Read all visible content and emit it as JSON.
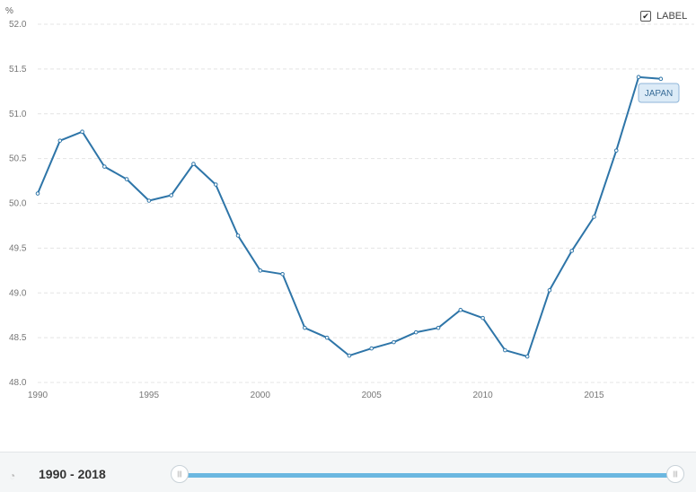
{
  "unit_label": "%",
  "label_toggle": {
    "label": "LABEL",
    "checked": true
  },
  "series_tag": "JAPAN",
  "bottom": {
    "range_text": "1990 - 2018"
  },
  "colors": {
    "line": "#2e75a8",
    "grid": "#e4e4e4",
    "track": "#6bb7e0",
    "tag_bg": "#dcebf7",
    "tag_border": "#8fb6d8"
  },
  "chart_data": {
    "type": "line",
    "title": "",
    "xlabel": "",
    "ylabel": "%",
    "x": [
      1990,
      1991,
      1992,
      1993,
      1994,
      1995,
      1996,
      1997,
      1998,
      1999,
      2000,
      2001,
      2002,
      2003,
      2004,
      2005,
      2006,
      2007,
      2008,
      2009,
      2010,
      2011,
      2012,
      2013,
      2014,
      2015,
      2016,
      2017,
      2018
    ],
    "series": [
      {
        "name": "JAPAN",
        "values": [
          50.11,
          50.7,
          50.8,
          50.41,
          50.27,
          50.03,
          50.09,
          50.44,
          50.21,
          49.64,
          49.25,
          49.21,
          48.61,
          48.5,
          48.3,
          48.38,
          48.45,
          48.56,
          48.61,
          48.81,
          48.72,
          48.36,
          48.29,
          49.03,
          49.47,
          49.85,
          50.59,
          51.41,
          51.39
        ]
      }
    ],
    "xlim": [
      1990,
      2019.5
    ],
    "ylim": [
      48.0,
      52.0
    ],
    "xticks": [
      "1990",
      "1995",
      "2000",
      "2005",
      "2010",
      "2015"
    ],
    "yticks": [
      "48.0",
      "48.5",
      "49.0",
      "49.5",
      "50.0",
      "50.5",
      "51.0",
      "51.5",
      "52.0"
    ],
    "grid": true,
    "legend": "none"
  }
}
